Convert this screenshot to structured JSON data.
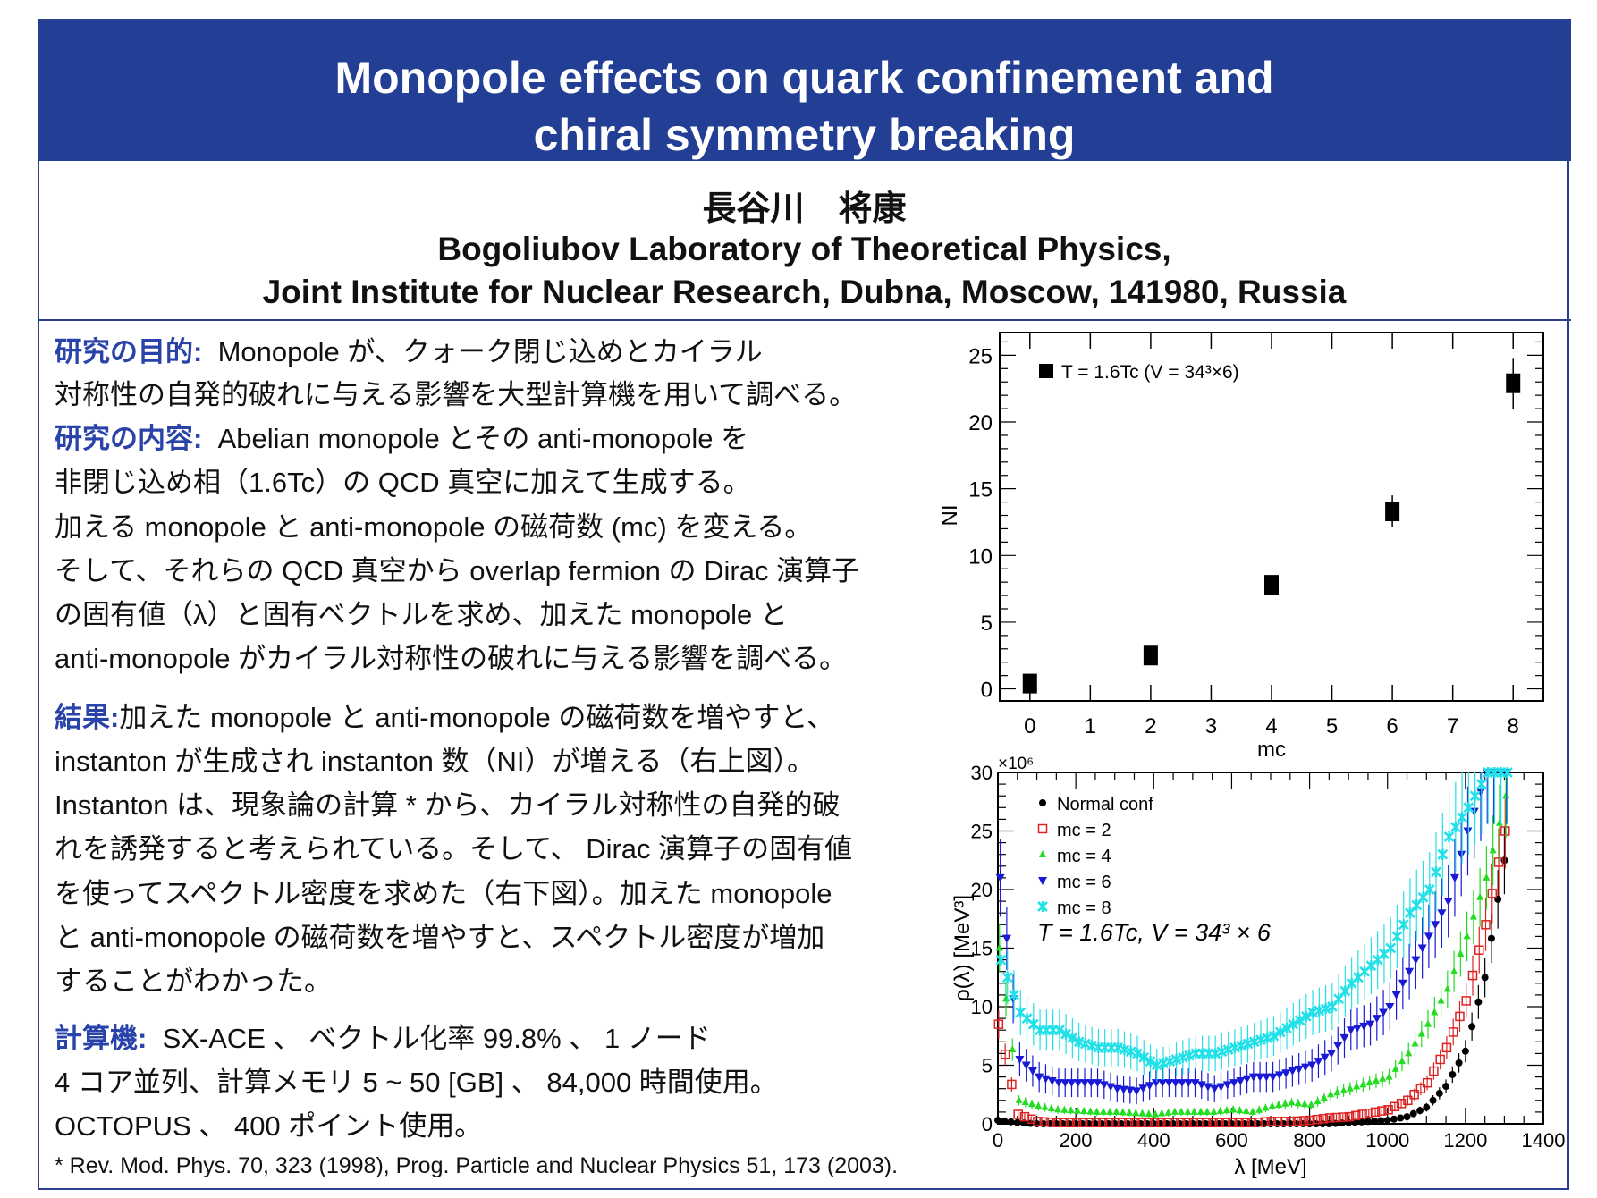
{
  "header": {
    "title_line1": "Monopole effects on quark confinement and",
    "title_line2": "chiral symmetry breaking"
  },
  "author": {
    "name": "長谷川　将康",
    "affiliation_line1": "Bogoliubov Laboratory of Theoretical Physics,",
    "affiliation_line2": "Joint Institute for Nuclear Research, Dubna, Moscow, 141980, Russia"
  },
  "sections": [
    {
      "heading": "研究の目的:",
      "lines": [
        "Monopole が、クォーク閉じ込めとカイラル",
        "対称性の自発的破れに与える影響を大型計算機を用いて調べる。"
      ]
    },
    {
      "heading": "研究の内容:",
      "lines": [
        "Abelian monopole とその anti-monopole を",
        "非閉じ込め相（1.6Tc）の QCD  真空に加えて生成する。",
        "加える monopole と anti-monopole の磁荷数 (mc) を変える。",
        "そして、それらの QCD 真空から overlap fermion の Dirac 演算子",
        "の固有値（λ）と固有ベクトルを求め、加えた monopole と",
        "anti-monopole がカイラル対称性の破れに与える影響を調べる。"
      ]
    },
    {
      "heading": "結果:",
      "lines": [
        "加えた monopole と anti-monopole の磁荷数を増やすと、",
        "instanton が生成され instanton 数（NI）が増える（右上図）。",
        "Instanton は、現象論の計算 * から、カイラル対称性の自発的破",
        "れを誘発すると考えられている。そして、 Dirac 演算子の固有値",
        "を使ってスペクトル密度を求めた（右下図）。加えた monopole",
        "と anti-monopole の磁荷数を増やすと、スペクトル密度が増加",
        "することがわかった。"
      ]
    },
    {
      "heading": "計算機:",
      "lines": [
        "SX-ACE 、 ベクトル化率 99.8% 、 1 ノード",
        "4 コア並列、計算メモリ 5 ~ 50 [GB] 、 84,000 時間使用。",
        "OCTOPUS 、 400 ポイント使用。"
      ]
    }
  ],
  "footnote": "* Rev. Mod. Phys. 70, 323 (1998), Prog. Particle and Nuclear Physics 51, 173 (2003).",
  "colors": {
    "header_bg": "#233e95",
    "heading_text": "#2a43a8"
  },
  "chart_data": [
    {
      "type": "scatter",
      "title": "",
      "xlabel": "mc",
      "ylabel": "NI",
      "xlim": [
        -0.5,
        8.5
      ],
      "ylim": [
        -0.9,
        26.7
      ],
      "xticks": [
        "0",
        "1",
        "2",
        "3",
        "4",
        "5",
        "6",
        "7",
        "8"
      ],
      "yticks": [
        "0",
        "5",
        "10",
        "15",
        "20",
        "25"
      ],
      "legend": {
        "placement": "top-left",
        "label": "T = 1.6Tc (V = 34³×6)"
      },
      "x": [
        0,
        2,
        4,
        6,
        8
      ],
      "y": [
        0.4,
        2.5,
        7.8,
        13.3,
        22.9
      ],
      "yerr": [
        0.1,
        0.2,
        0.6,
        1.2,
        1.9
      ]
    },
    {
      "type": "scatter",
      "title": "",
      "xlabel": "λ [MeV]",
      "ylabel": "ρ(λ) [MeV³]",
      "yscale_label": "×10⁶",
      "xlim": [
        0,
        1400
      ],
      "ylim": [
        0,
        30
      ],
      "xticks": [
        "0",
        "200",
        "400",
        "600",
        "800",
        "1000",
        "1200",
        "1400"
      ],
      "yticks": [
        "0",
        "5",
        "10",
        "15",
        "20",
        "25",
        "30"
      ],
      "annotation": "T = 1.6Tc, V = 34³ × 6",
      "legend_placement": "top-left",
      "x": [
        0,
        50,
        100,
        150,
        200,
        250,
        300,
        350,
        400,
        450,
        500,
        550,
        600,
        650,
        700,
        750,
        800,
        850,
        900,
        950,
        1000,
        1050,
        1100,
        1150,
        1200,
        1250,
        1300
      ],
      "series": [
        {
          "name": "Normal conf",
          "color": "#000000",
          "marker": "circle",
          "values": [
            0.3,
            0.1,
            0,
            0,
            0,
            0,
            0,
            0,
            0,
            0,
            0,
            0,
            0,
            0,
            0,
            0,
            0,
            0,
            0.1,
            0.2,
            0.3,
            0.6,
            1.4,
            3.2,
            6.2,
            12.5,
            22.5
          ]
        },
        {
          "name": "mc = 2",
          "color": "#dd2222",
          "marker": "open-square",
          "values": [
            8.5,
            0.8,
            0.2,
            0.1,
            0.1,
            0.1,
            0.1,
            0.1,
            0.1,
            0.1,
            0.1,
            0.1,
            0.1,
            0.1,
            0.2,
            0.2,
            0.3,
            0.5,
            0.6,
            0.9,
            1.2,
            2,
            3.5,
            6.5,
            10.5,
            17,
            25
          ]
        },
        {
          "name": "mc = 4",
          "color": "#22dd22",
          "marker": "triangle-up",
          "values": [
            15,
            2,
            1.5,
            1.2,
            1.1,
            1,
            1,
            0.9,
            0.8,
            1,
            1,
            1,
            1.2,
            1,
            1.5,
            1.8,
            1.6,
            2.5,
            3,
            3.5,
            4,
            6,
            8.5,
            11.5,
            16,
            21,
            28
          ]
        },
        {
          "name": "mc = 6",
          "color": "#1a1ad6",
          "marker": "triangle-down",
          "values": [
            21,
            5.5,
            4,
            3.5,
            3.5,
            3.5,
            3,
            2.8,
            3.5,
            3.5,
            3.5,
            3,
            3.5,
            4,
            4,
            4.5,
            5,
            6,
            8,
            8.5,
            10,
            13,
            16,
            19,
            25,
            30,
            30
          ]
        },
        {
          "name": "mc = 8",
          "color": "#22e0e8",
          "marker": "star",
          "values": [
            14,
            9.5,
            8,
            8,
            7,
            6.5,
            6.5,
            6,
            5,
            5.5,
            6,
            6,
            6.5,
            7,
            7.5,
            8.5,
            9.5,
            10,
            12,
            13.5,
            15,
            18,
            20,
            24.5,
            27,
            30,
            30
          ]
        }
      ]
    }
  ]
}
